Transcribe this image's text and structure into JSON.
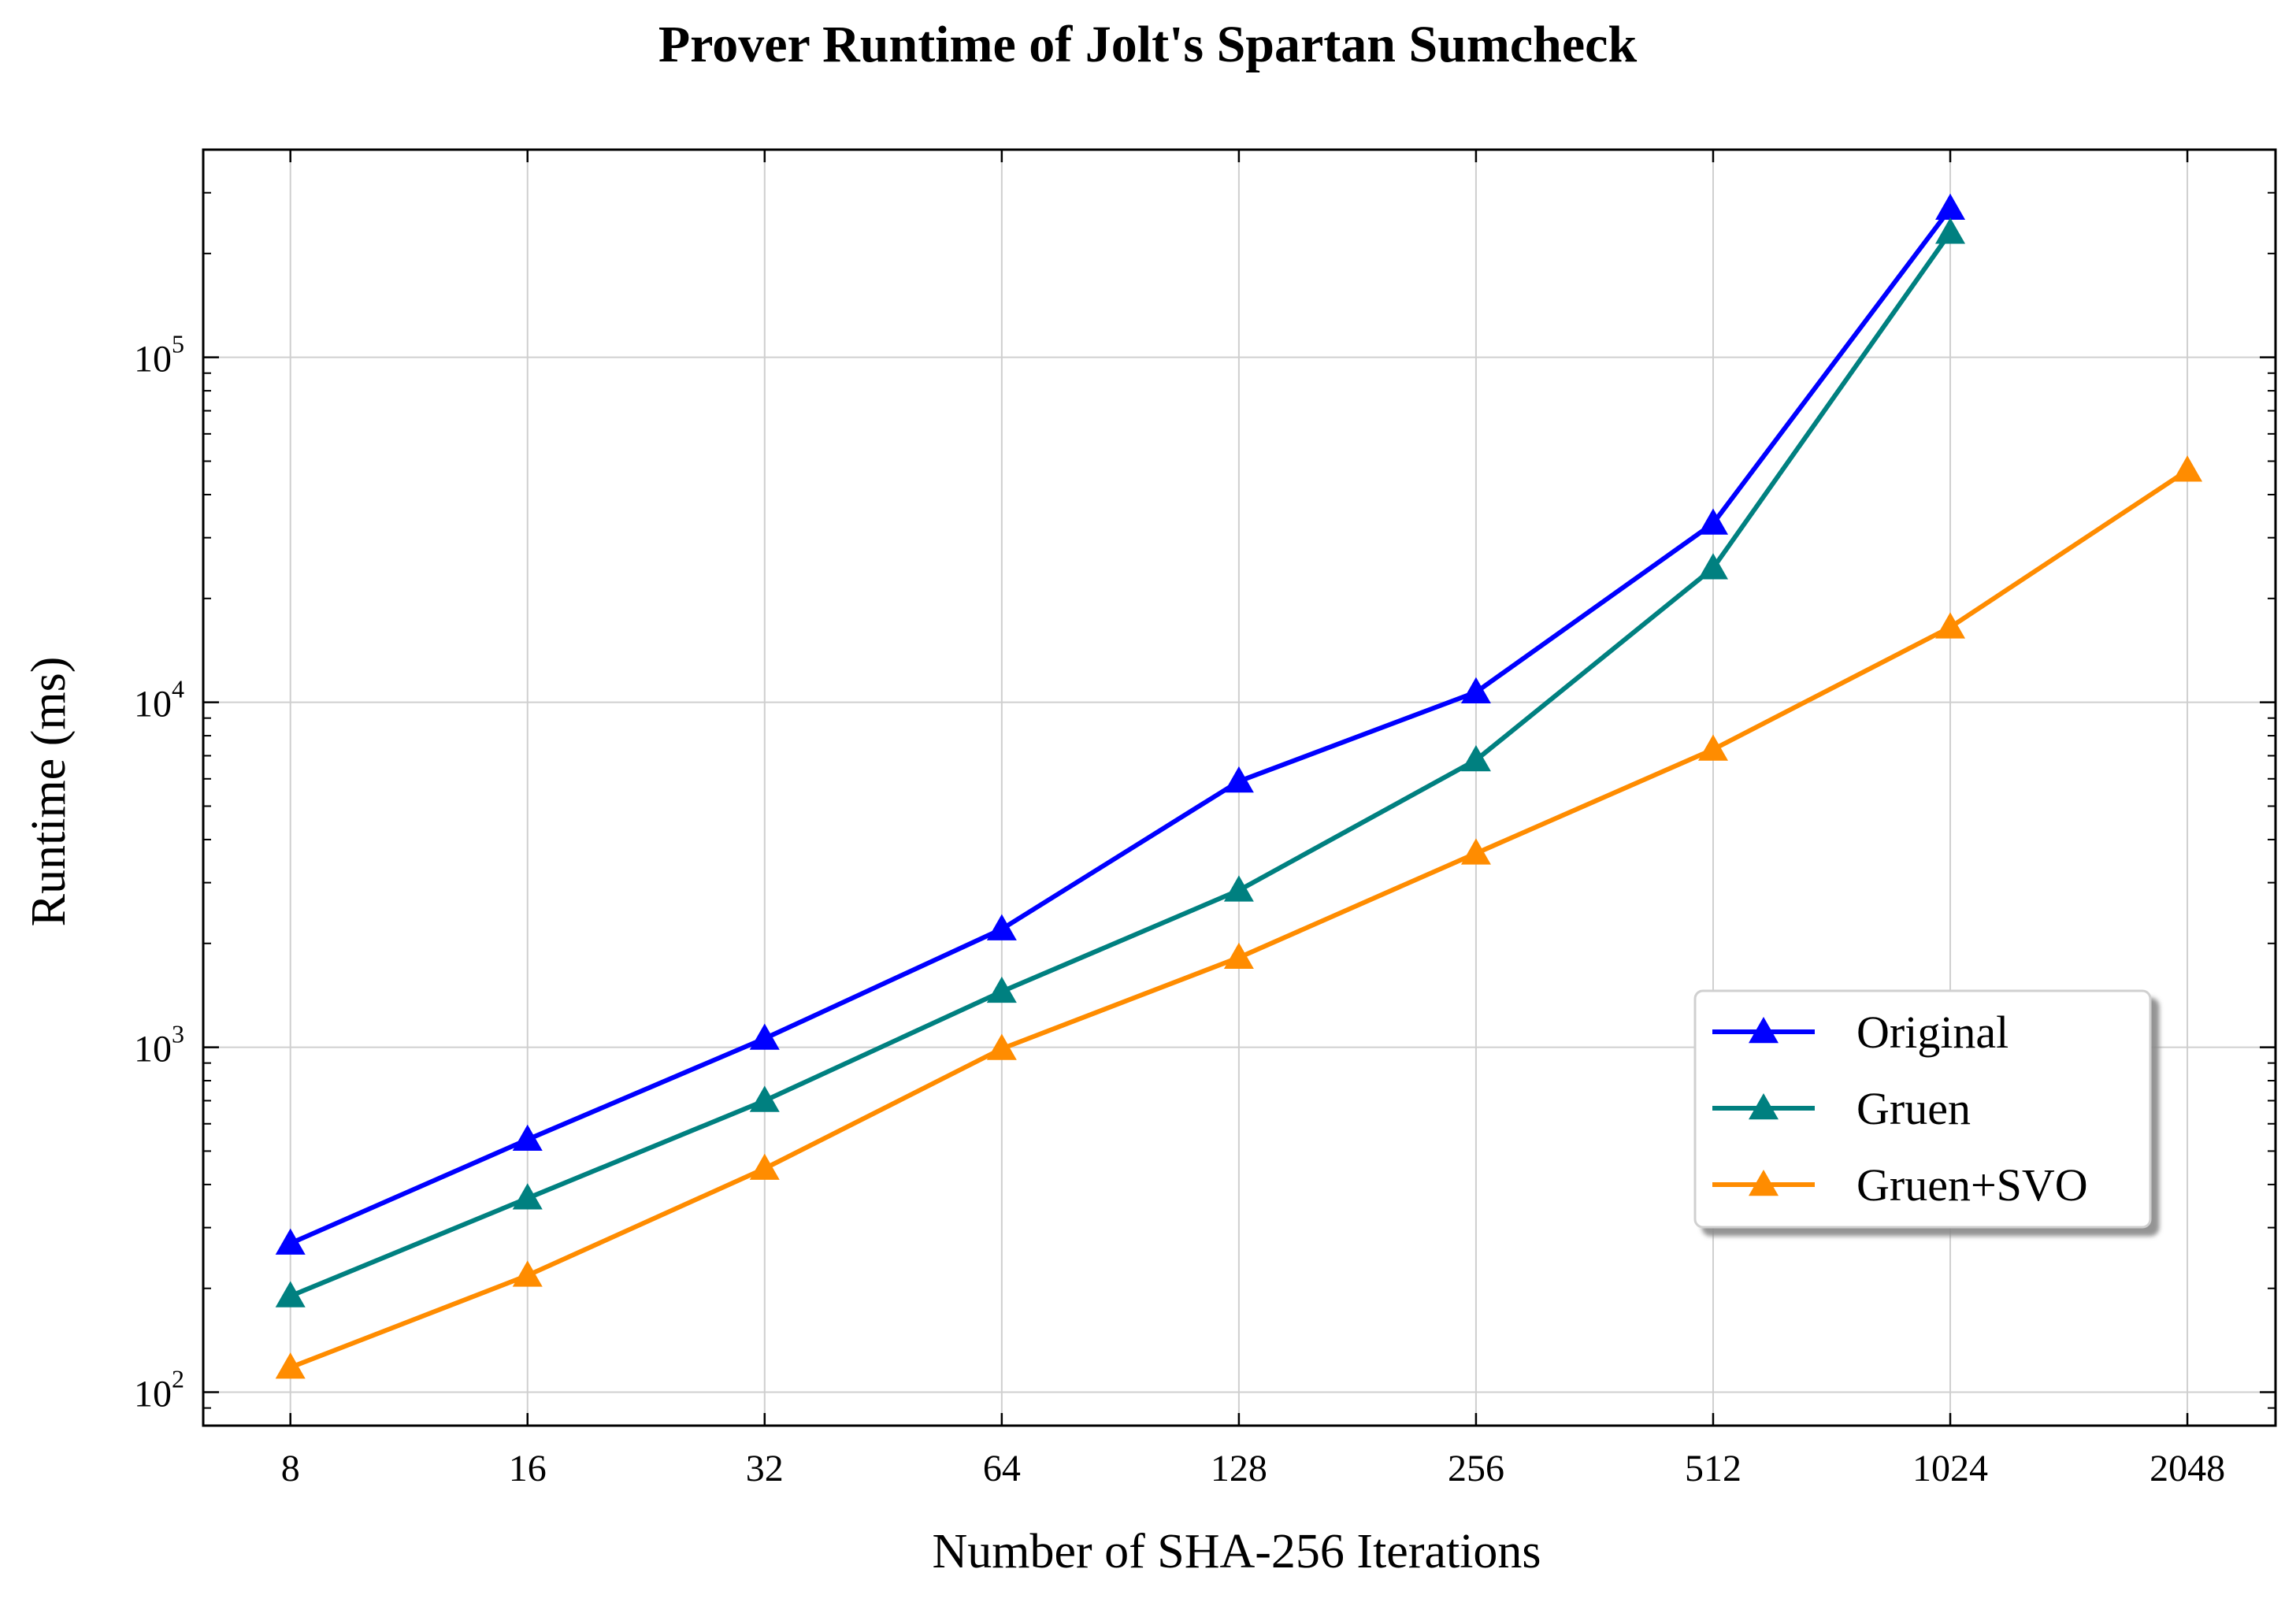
{
  "chart_data": {
    "type": "line",
    "title": "Prover Runtime of Jolt's Spartan Sumcheck",
    "xlabel": "Number of SHA-256 Iterations",
    "ylabel": "Runtime (ms)",
    "x_scale": "log2",
    "y_scale": "log10",
    "x": [
      8,
      16,
      32,
      64,
      128,
      256,
      512,
      1024,
      2048
    ],
    "x_tick_labels": [
      "8",
      "16",
      "32",
      "64",
      "128",
      "256",
      "512",
      "1024",
      "2048"
    ],
    "y_ticks": [
      {
        "base": "10",
        "exp": "2",
        "value": 100
      },
      {
        "base": "10",
        "exp": "3",
        "value": 1000
      },
      {
        "base": "10",
        "exp": "4",
        "value": 10000
      },
      {
        "base": "10",
        "exp": "5",
        "value": 100000
      }
    ],
    "ylim": [
      80,
      400000
    ],
    "xlim": [
      6.2,
      2650
    ],
    "grid": true,
    "legend_position": "center-right",
    "series": [
      {
        "name": "Original",
        "color": "#0000ff",
        "marker": "triangle-up",
        "x": [
          8,
          16,
          32,
          64,
          128,
          256,
          512,
          1024
        ],
        "values": [
          270,
          540,
          1060,
          2200,
          5900,
          10700,
          33000,
          270000
        ]
      },
      {
        "name": "Gruen",
        "color": "#008080",
        "marker": "triangle-up",
        "x": [
          8,
          16,
          32,
          64,
          128,
          256,
          512,
          1024
        ],
        "values": [
          190,
          365,
          700,
          1450,
          2850,
          6800,
          24500,
          230000
        ]
      },
      {
        "name": "Gruen+SVO",
        "color": "#ff8c00",
        "marker": "triangle-up",
        "x": [
          8,
          16,
          32,
          64,
          128,
          256,
          512,
          1024,
          2048
        ],
        "values": [
          118,
          218,
          445,
          990,
          1820,
          3650,
          7300,
          16500,
          47000
        ]
      }
    ]
  }
}
